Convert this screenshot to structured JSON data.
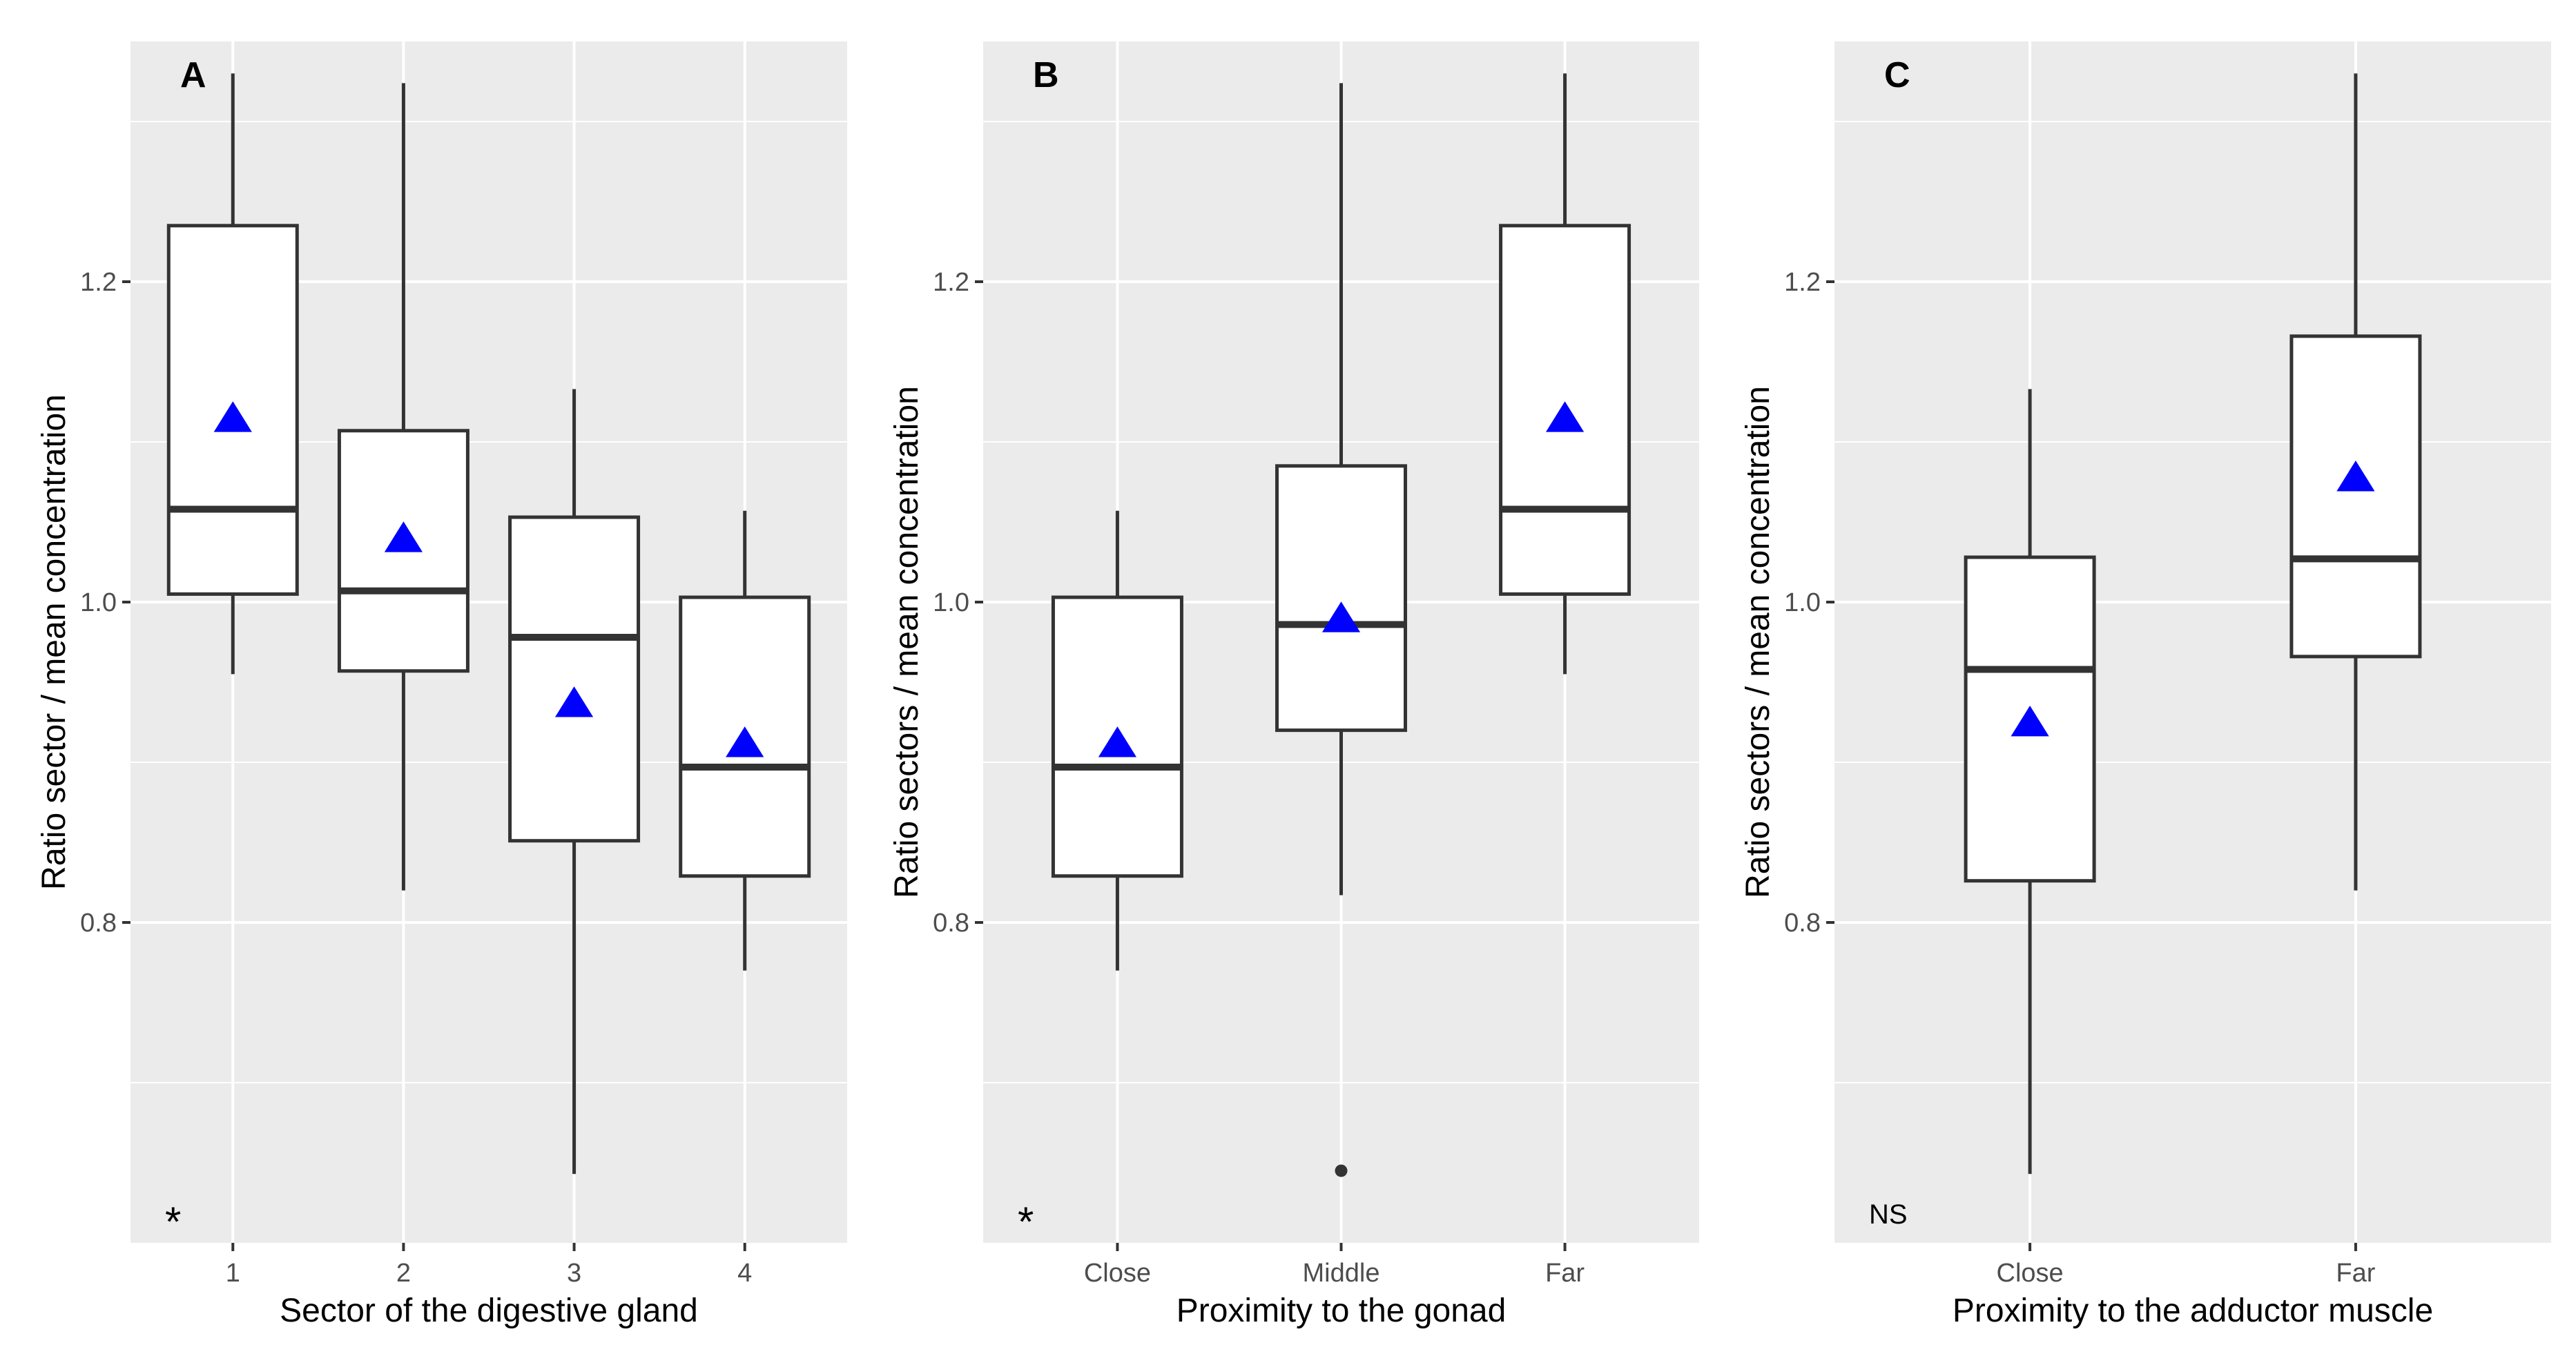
{
  "chart_data": [
    {
      "type": "box",
      "panel": "A",
      "title": "",
      "xlabel": "Sector of the digestive gland",
      "ylabel": "Ratio sector / mean concentration",
      "significance": "*",
      "ylim": [
        0.6,
        1.35
      ],
      "yticks": [
        0.8,
        1.0,
        1.2
      ],
      "ytick_labels": [
        "0.8",
        "1.0",
        "1.2"
      ],
      "categories": [
        "1",
        "2",
        "3",
        "4"
      ],
      "boxes": [
        {
          "min": 0.955,
          "q1": 1.005,
          "median": 1.058,
          "q3": 1.235,
          "max": 1.33,
          "mean": 1.115,
          "outliers": []
        },
        {
          "min": 0.82,
          "q1": 0.957,
          "median": 1.007,
          "q3": 1.107,
          "max": 1.324,
          "mean": 1.04,
          "outliers": []
        },
        {
          "min": 0.643,
          "q1": 0.851,
          "median": 0.978,
          "q3": 1.053,
          "max": 1.133,
          "mean": 0.937,
          "outliers": []
        },
        {
          "min": 0.77,
          "q1": 0.829,
          "median": 0.897,
          "q3": 1.003,
          "max": 1.057,
          "mean": 0.912,
          "outliers": []
        }
      ],
      "mean_marker": "blue triangle"
    },
    {
      "type": "box",
      "panel": "B",
      "title": "",
      "xlabel": "Proximity to the gonad",
      "ylabel": "Ratio sectors / mean concentration",
      "significance": "*",
      "ylim": [
        0.6,
        1.35
      ],
      "yticks": [
        0.8,
        1.0,
        1.2
      ],
      "ytick_labels": [
        "0.8",
        "1.0",
        "1.2"
      ],
      "categories": [
        "Close",
        "Middle",
        "Far"
      ],
      "boxes": [
        {
          "min": 0.77,
          "q1": 0.829,
          "median": 0.897,
          "q3": 1.003,
          "max": 1.057,
          "mean": 0.912,
          "outliers": []
        },
        {
          "min": 0.817,
          "q1": 0.92,
          "median": 0.986,
          "q3": 1.085,
          "max": 1.324,
          "mean": 0.99,
          "outliers": [
            0.645
          ]
        },
        {
          "min": 0.955,
          "q1": 1.005,
          "median": 1.058,
          "q3": 1.235,
          "max": 1.33,
          "mean": 1.115,
          "outliers": []
        }
      ],
      "mean_marker": "blue triangle"
    },
    {
      "type": "box",
      "panel": "C",
      "title": "",
      "xlabel": "Proximity to the adductor muscle",
      "ylabel": "Ratio sectors / mean concentration",
      "significance": "NS",
      "ylim": [
        0.6,
        1.35
      ],
      "yticks": [
        0.8,
        1.0,
        1.2
      ],
      "ytick_labels": [
        "0.8",
        "1.0",
        "1.2"
      ],
      "categories": [
        "Close",
        "Far"
      ],
      "boxes": [
        {
          "min": 0.643,
          "q1": 0.826,
          "median": 0.958,
          "q3": 1.028,
          "max": 1.133,
          "mean": 0.925,
          "outliers": []
        },
        {
          "min": 0.82,
          "q1": 0.966,
          "median": 1.027,
          "q3": 1.166,
          "max": 1.33,
          "mean": 1.078,
          "outliers": []
        }
      ],
      "mean_marker": "blue triangle"
    }
  ]
}
